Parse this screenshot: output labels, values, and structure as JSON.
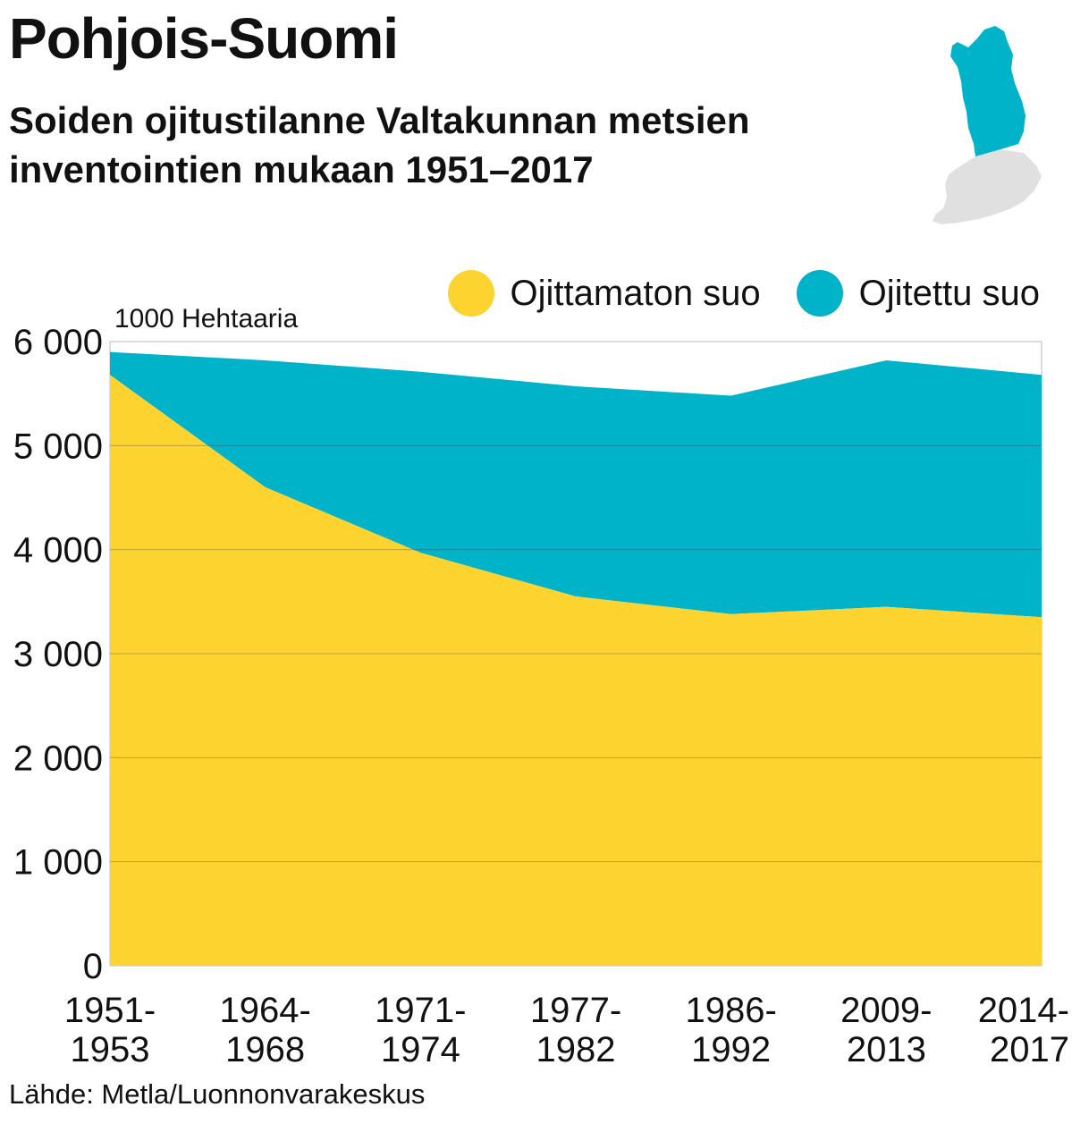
{
  "title": "Pohjois-Suomi",
  "subtitle": "Soiden ojitustilanne Valtakunnan metsien inventointien mukaan 1951–2017",
  "source": "Lähde: Metla/Luonnonvarakeskus",
  "colors": {
    "undrained": "#fdd330",
    "drained": "#00b3c9",
    "map_region": "#00b3c9",
    "map_rest": "#e0e0e0",
    "grid": "#444444"
  },
  "chart_data": {
    "type": "area",
    "stacked": true,
    "title": "Soiden ojitustilanne Valtakunnan metsien inventointien mukaan 1951–2017",
    "ylabel": "1000 Hehtaaria",
    "xlabel": "",
    "ylim": [
      0,
      6000
    ],
    "yticks": [
      0,
      1000,
      2000,
      3000,
      4000,
      5000,
      6000
    ],
    "ytick_labels": [
      "0",
      "1 000",
      "2 000",
      "3 000",
      "4 000",
      "5 000",
      "6 000"
    ],
    "categories": [
      "1951-1953",
      "1964-1968",
      "1971-1974",
      "1977-1982",
      "1986-1992",
      "2009-2013",
      "2014-2017"
    ],
    "category_labels": [
      [
        "1951-",
        "1953"
      ],
      [
        "1964-",
        "1968"
      ],
      [
        "1971-",
        "1974"
      ],
      [
        "1977-",
        "1982"
      ],
      [
        "1986-",
        "1992"
      ],
      [
        "2009-",
        "2013"
      ],
      [
        "2014-",
        "2017"
      ]
    ],
    "series": [
      {
        "name": "Ojittamaton suo",
        "color": "#fdd330",
        "values": [
          5680,
          4600,
          3970,
          3550,
          3380,
          3450,
          3350
        ]
      },
      {
        "name": "Ojitettu suo",
        "color": "#00b3c9",
        "values": [
          220,
          1220,
          1740,
          2020,
          2100,
          2370,
          2330
        ]
      }
    ],
    "grid": "horizontal",
    "legend": "top-right"
  }
}
